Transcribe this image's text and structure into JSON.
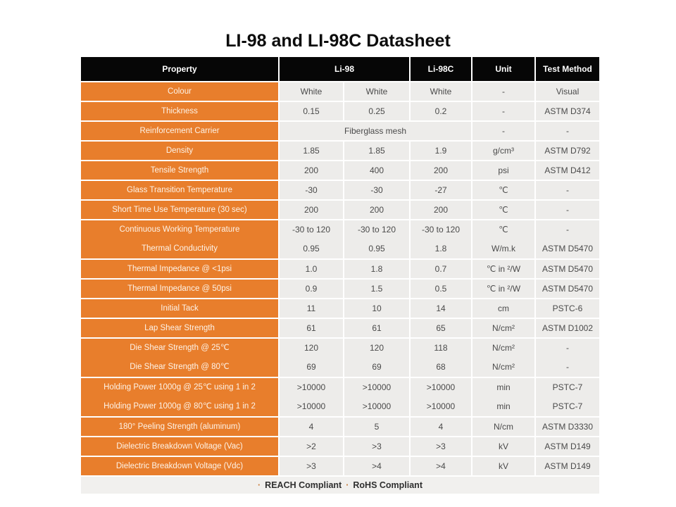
{
  "page": {
    "title": "LI-98 and LI-98C Datasheet"
  },
  "colors": {
    "header_bg": "#060606",
    "header_text": "#ffffff",
    "property_bg": "#e87e2c",
    "property_text": "#fdf3e8",
    "value_bg": "#edecea",
    "value_text": "#4a4a4a",
    "footer_bg": "#f1f0ee",
    "bullet": "#c87a37"
  },
  "table": {
    "headers": {
      "property": "Property",
      "li98": "Li-98",
      "li98c": "Li-98C",
      "unit": "Unit",
      "method": "Test Method"
    },
    "rows": [
      {
        "type": "normal",
        "property": "Colour",
        "values": [
          "White",
          "White",
          "White"
        ],
        "unit": "-",
        "method": "Visual"
      },
      {
        "type": "normal",
        "property": "Thickness",
        "values": [
          "0.15",
          "0.25",
          "0.2"
        ],
        "unit": "-",
        "method": "ASTM D374"
      },
      {
        "type": "span",
        "property": "Reinforcement Carrier",
        "span_value": "Fiberglass mesh",
        "unit": "-",
        "method": "-"
      },
      {
        "type": "normal",
        "property": "Density",
        "values": [
          "1.85",
          "1.85",
          "1.9"
        ],
        "unit": "g/cm³",
        "method": "ASTM D792"
      },
      {
        "type": "normal",
        "property": "Tensile Strength",
        "values": [
          "200",
          "400",
          "200"
        ],
        "unit": "psi",
        "method": "ASTM D412"
      },
      {
        "type": "normal",
        "property": "Glass Transition Temperature",
        "values": [
          "-30",
          "-30",
          "-27"
        ],
        "unit": "℃",
        "method": "-"
      },
      {
        "type": "normal",
        "property": "Short Time Use Temperature (30 sec)",
        "values": [
          "200",
          "200",
          "200"
        ],
        "unit": "℃",
        "method": "-"
      },
      {
        "type": "group",
        "lines": [
          {
            "property": "Continuous Working Temperature",
            "values": [
              "-30 to 120",
              "-30 to 120",
              "-30 to 120"
            ],
            "unit": "℃",
            "method": "-"
          },
          {
            "property": "Thermal Conductivity",
            "values": [
              "0.95",
              "0.95",
              "1.8"
            ],
            "unit": "W/m.k",
            "method": "ASTM D5470"
          }
        ]
      },
      {
        "type": "normal",
        "property": "Thermal Impedance @ <1psi",
        "values": [
          "1.0",
          "1.8",
          "0.7"
        ],
        "unit": "℃ in ²/W",
        "method": "ASTM D5470"
      },
      {
        "type": "normal",
        "property": "Thermal Impedance @ 50psi",
        "values": [
          "0.9",
          "1.5",
          "0.5"
        ],
        "unit": "℃ in ²/W",
        "method": "ASTM D5470"
      },
      {
        "type": "normal",
        "property": "Initial Tack",
        "values": [
          "11",
          "10",
          "14"
        ],
        "unit": "cm",
        "method": "PSTC-6"
      },
      {
        "type": "normal",
        "property": "Lap Shear Strength",
        "values": [
          "61",
          "61",
          "65"
        ],
        "unit": "N/cm²",
        "method": "ASTM D1002"
      },
      {
        "type": "group",
        "lines": [
          {
            "property": "Die Shear Strength @ 25℃",
            "values": [
              "120",
              "120",
              "118"
            ],
            "unit": "N/cm²",
            "method": "-"
          },
          {
            "property": "Die Shear Strength @ 80℃",
            "values": [
              "69",
              "69",
              "68"
            ],
            "unit": "N/cm²",
            "method": "-"
          }
        ]
      },
      {
        "type": "group",
        "lines": [
          {
            "property": "Holding Power 1000g @ 25℃  using 1 in 2",
            "values": [
              ">10000",
              ">10000",
              ">10000"
            ],
            "unit": "min",
            "method": "PSTC-7"
          },
          {
            "property": "Holding Power 1000g @ 80℃  using 1 in 2",
            "values": [
              ">10000",
              ">10000",
              ">10000"
            ],
            "unit": "min",
            "method": "PSTC-7"
          }
        ]
      },
      {
        "type": "normal",
        "property": "180° Peeling Strength (aluminum)",
        "values": [
          "4",
          "5",
          "4"
        ],
        "unit": "N/cm",
        "method": "ASTM D3330"
      },
      {
        "type": "normal",
        "property": "Dielectric Breakdown Voltage (Vac)",
        "values": [
          ">2",
          ">3",
          ">3"
        ],
        "unit": "kV",
        "method": "ASTM D149"
      },
      {
        "type": "normal",
        "property": "Dielectric Breakdown Voltage (Vdc)",
        "values": [
          ">3",
          ">4",
          ">4"
        ],
        "unit": "kV",
        "method": "ASTM D149"
      }
    ],
    "footer": {
      "bullet": "·",
      "items": [
        "REACH Compliant",
        "RoHS Compliant"
      ]
    }
  }
}
